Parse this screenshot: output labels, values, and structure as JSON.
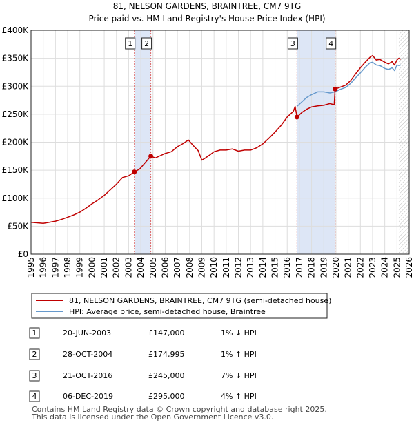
{
  "title": "81, NELSON GARDENS, BRAINTREE, CM7 9TG",
  "subtitle": "Price paid vs. HM Land Registry's House Price Index (HPI)",
  "colors": {
    "price_line": "#c00000",
    "hpi_line": "#6699cc",
    "band_fill": "#dde6f6",
    "grid": "#dddddd",
    "marker_line": "#dd6666",
    "hatch": "#bbbbbb"
  },
  "chart_data": {
    "type": "line",
    "xlim": [
      1995,
      2026
    ],
    "ylim": [
      0,
      400000
    ],
    "y_ticks": [
      {
        "value": 0,
        "label": "£0"
      },
      {
        "value": 50000,
        "label": "£50K"
      },
      {
        "value": 100000,
        "label": "£100K"
      },
      {
        "value": 150000,
        "label": "£150K"
      },
      {
        "value": 200000,
        "label": "£200K"
      },
      {
        "value": 250000,
        "label": "£250K"
      },
      {
        "value": 300000,
        "label": "£300K"
      },
      {
        "value": 350000,
        "label": "£350K"
      },
      {
        "value": 400000,
        "label": "£400K"
      }
    ],
    "x_ticks": [
      "1995",
      "1996",
      "1997",
      "1998",
      "1999",
      "2000",
      "2001",
      "2002",
      "2003",
      "2004",
      "2005",
      "2006",
      "2007",
      "2008",
      "2009",
      "2010",
      "2011",
      "2012",
      "2013",
      "2014",
      "2015",
      "2016",
      "2017",
      "2018",
      "2019",
      "2020",
      "2021",
      "2022",
      "2023",
      "2024",
      "2025",
      "2026"
    ],
    "shaded_ranges": [
      [
        2003.47,
        2004.82
      ],
      [
        2016.8,
        2019.93
      ]
    ],
    "forecast_start": 2025.15,
    "markers": [
      {
        "label": "1",
        "x": 2003.47,
        "y": 147000
      },
      {
        "label": "2",
        "x": 2004.82,
        "y": 174995
      },
      {
        "label": "3",
        "x": 2016.8,
        "y": 245000
      },
      {
        "label": "4",
        "x": 2019.93,
        "y": 295000
      }
    ],
    "series": [
      {
        "name": "81, NELSON GARDENS, BRAINTREE, CM7 9TG (semi-detached house)",
        "x": [
          1995.0,
          1995.5,
          1996.0,
          1996.5,
          1997.0,
          1997.5,
          1998.0,
          1998.5,
          1999.0,
          1999.5,
          2000.0,
          2000.5,
          2001.0,
          2001.5,
          2002.0,
          2002.5,
          2003.0,
          2003.47,
          2003.9,
          2004.3,
          2004.82,
          2005.2,
          2005.6,
          2006.0,
          2006.5,
          2007.0,
          2007.5,
          2007.9,
          2008.3,
          2008.7,
          2009.0,
          2009.3,
          2009.7,
          2010.0,
          2010.5,
          2011.0,
          2011.5,
          2012.0,
          2012.5,
          2013.0,
          2013.5,
          2014.0,
          2014.5,
          2015.0,
          2015.5,
          2016.0,
          2016.5,
          2016.65,
          2016.8,
          2017.2,
          2017.6,
          2018.0,
          2018.5,
          2019.0,
          2019.5,
          2019.85,
          2019.93,
          2020.3,
          2020.8,
          2021.2,
          2021.6,
          2022.0,
          2022.4,
          2022.8,
          2023.0,
          2023.3,
          2023.6,
          2024.0,
          2024.3,
          2024.6,
          2024.8,
          2025.0,
          2025.15,
          2025.3
        ],
        "y": [
          57000,
          56000,
          55000,
          57000,
          59000,
          62000,
          66000,
          70000,
          75000,
          82000,
          90000,
          97000,
          105000,
          115000,
          125000,
          137000,
          140000,
          147000,
          152000,
          162000,
          174995,
          172000,
          176000,
          180000,
          183000,
          192000,
          198000,
          204000,
          194000,
          185000,
          168000,
          172000,
          178000,
          183000,
          186000,
          186000,
          188000,
          184000,
          186000,
          186000,
          190000,
          197000,
          207000,
          218000,
          230000,
          245000,
          255000,
          264000,
          245000,
          253000,
          259000,
          263000,
          265000,
          266000,
          269000,
          267000,
          295000,
          298000,
          302000,
          310000,
          322000,
          333000,
          343000,
          352000,
          355000,
          347000,
          348000,
          343000,
          340000,
          344000,
          338000,
          347000,
          350000,
          348000
        ]
      },
      {
        "name": "HPI: Average price, semi-detached house, Braintree",
        "x": [
          2016.8,
          2017.2,
          2017.6,
          2018.0,
          2018.5,
          2019.0,
          2019.5,
          2019.93,
          2020.3,
          2020.8,
          2021.2,
          2021.6,
          2022.0,
          2022.4,
          2022.8,
          2023.0,
          2023.3,
          2023.6,
          2024.0,
          2024.3,
          2024.6,
          2024.8,
          2025.0,
          2025.15,
          2025.3
        ],
        "y": [
          264000,
          272000,
          280000,
          285000,
          290000,
          290000,
          288000,
          290000,
          294000,
          298000,
          305000,
          315000,
          324000,
          334000,
          342000,
          343000,
          338000,
          337000,
          332000,
          330000,
          333000,
          328000,
          338000,
          337000,
          338000
        ]
      }
    ]
  },
  "legend": {
    "price_label": "81, NELSON GARDENS, BRAINTREE, CM7 9TG (semi-detached house)",
    "hpi_label": "HPI: Average price, semi-detached house, Braintree"
  },
  "sales": [
    {
      "num": "1",
      "date": "20-JUN-2003",
      "price": "£147,000",
      "hpi": "1% ↓ HPI"
    },
    {
      "num": "2",
      "date": "28-OCT-2004",
      "price": "£174,995",
      "hpi": "1% ↑ HPI"
    },
    {
      "num": "3",
      "date": "21-OCT-2016",
      "price": "£245,000",
      "hpi": "7% ↓ HPI"
    },
    {
      "num": "4",
      "date": "06-DEC-2019",
      "price": "£295,000",
      "hpi": "4% ↑ HPI"
    }
  ],
  "footer": {
    "line1": "Contains HM Land Registry data © Crown copyright and database right 2025.",
    "line2": "This data is licensed under the Open Government Licence v3.0."
  }
}
